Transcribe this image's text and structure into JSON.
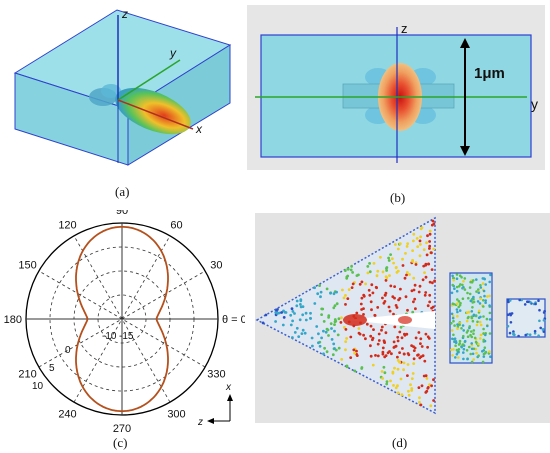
{
  "captions": {
    "a": "(a)",
    "b": "(b)",
    "c": "(c)",
    "d": "(d)"
  },
  "panel_a": {
    "axis_z": "z",
    "axis_y": "y",
    "axis_x": "x"
  },
  "panel_b": {
    "axis_z": "z",
    "axis_y": "y",
    "scale_label": "1μm"
  },
  "panel_c": {
    "angle_labels": [
      "90",
      "60",
      "30",
      "θ = 0",
      "330",
      "300",
      "270",
      "240",
      "210",
      "180",
      "150",
      "120"
    ],
    "radial_labels": [
      "-10",
      "-15",
      "0",
      "5",
      "10"
    ],
    "axis_x": "x",
    "axis_z": "z"
  },
  "colors": {
    "box_fill": "#8fd8e3",
    "box_edge": "#2e3fcf",
    "axis_blue": "#2030c0",
    "axis_green": "#2aa52a",
    "pattern_line": "#b5501c"
  }
}
